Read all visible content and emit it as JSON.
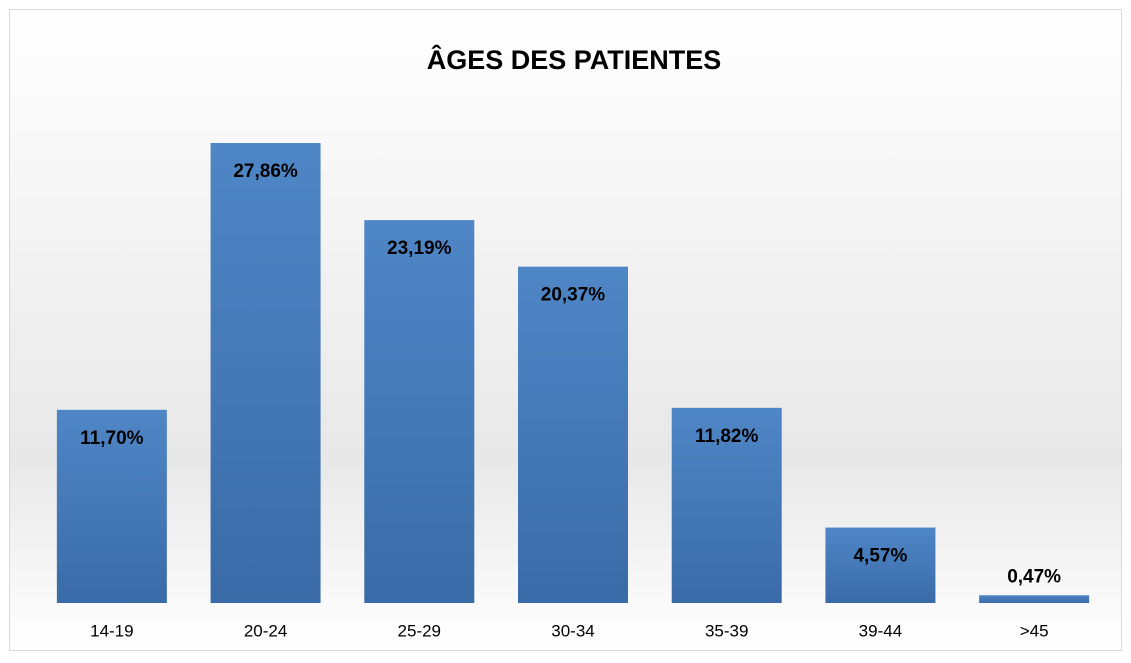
{
  "chart_data": {
    "type": "bar",
    "title": "ÂGES DES PATIENTES",
    "categories": [
      "14-19",
      "20-24",
      "25-29",
      "30-34",
      "35-39",
      "39-44",
      ">45"
    ],
    "values": [
      11.7,
      27.86,
      23.19,
      20.37,
      11.82,
      4.57,
      0.47
    ],
    "value_labels": [
      "11,70%",
      "27,86%",
      "23,19%",
      "20,37%",
      "11,82%",
      "4,57%",
      "0,47%"
    ],
    "color": "#4a7ebb"
  }
}
